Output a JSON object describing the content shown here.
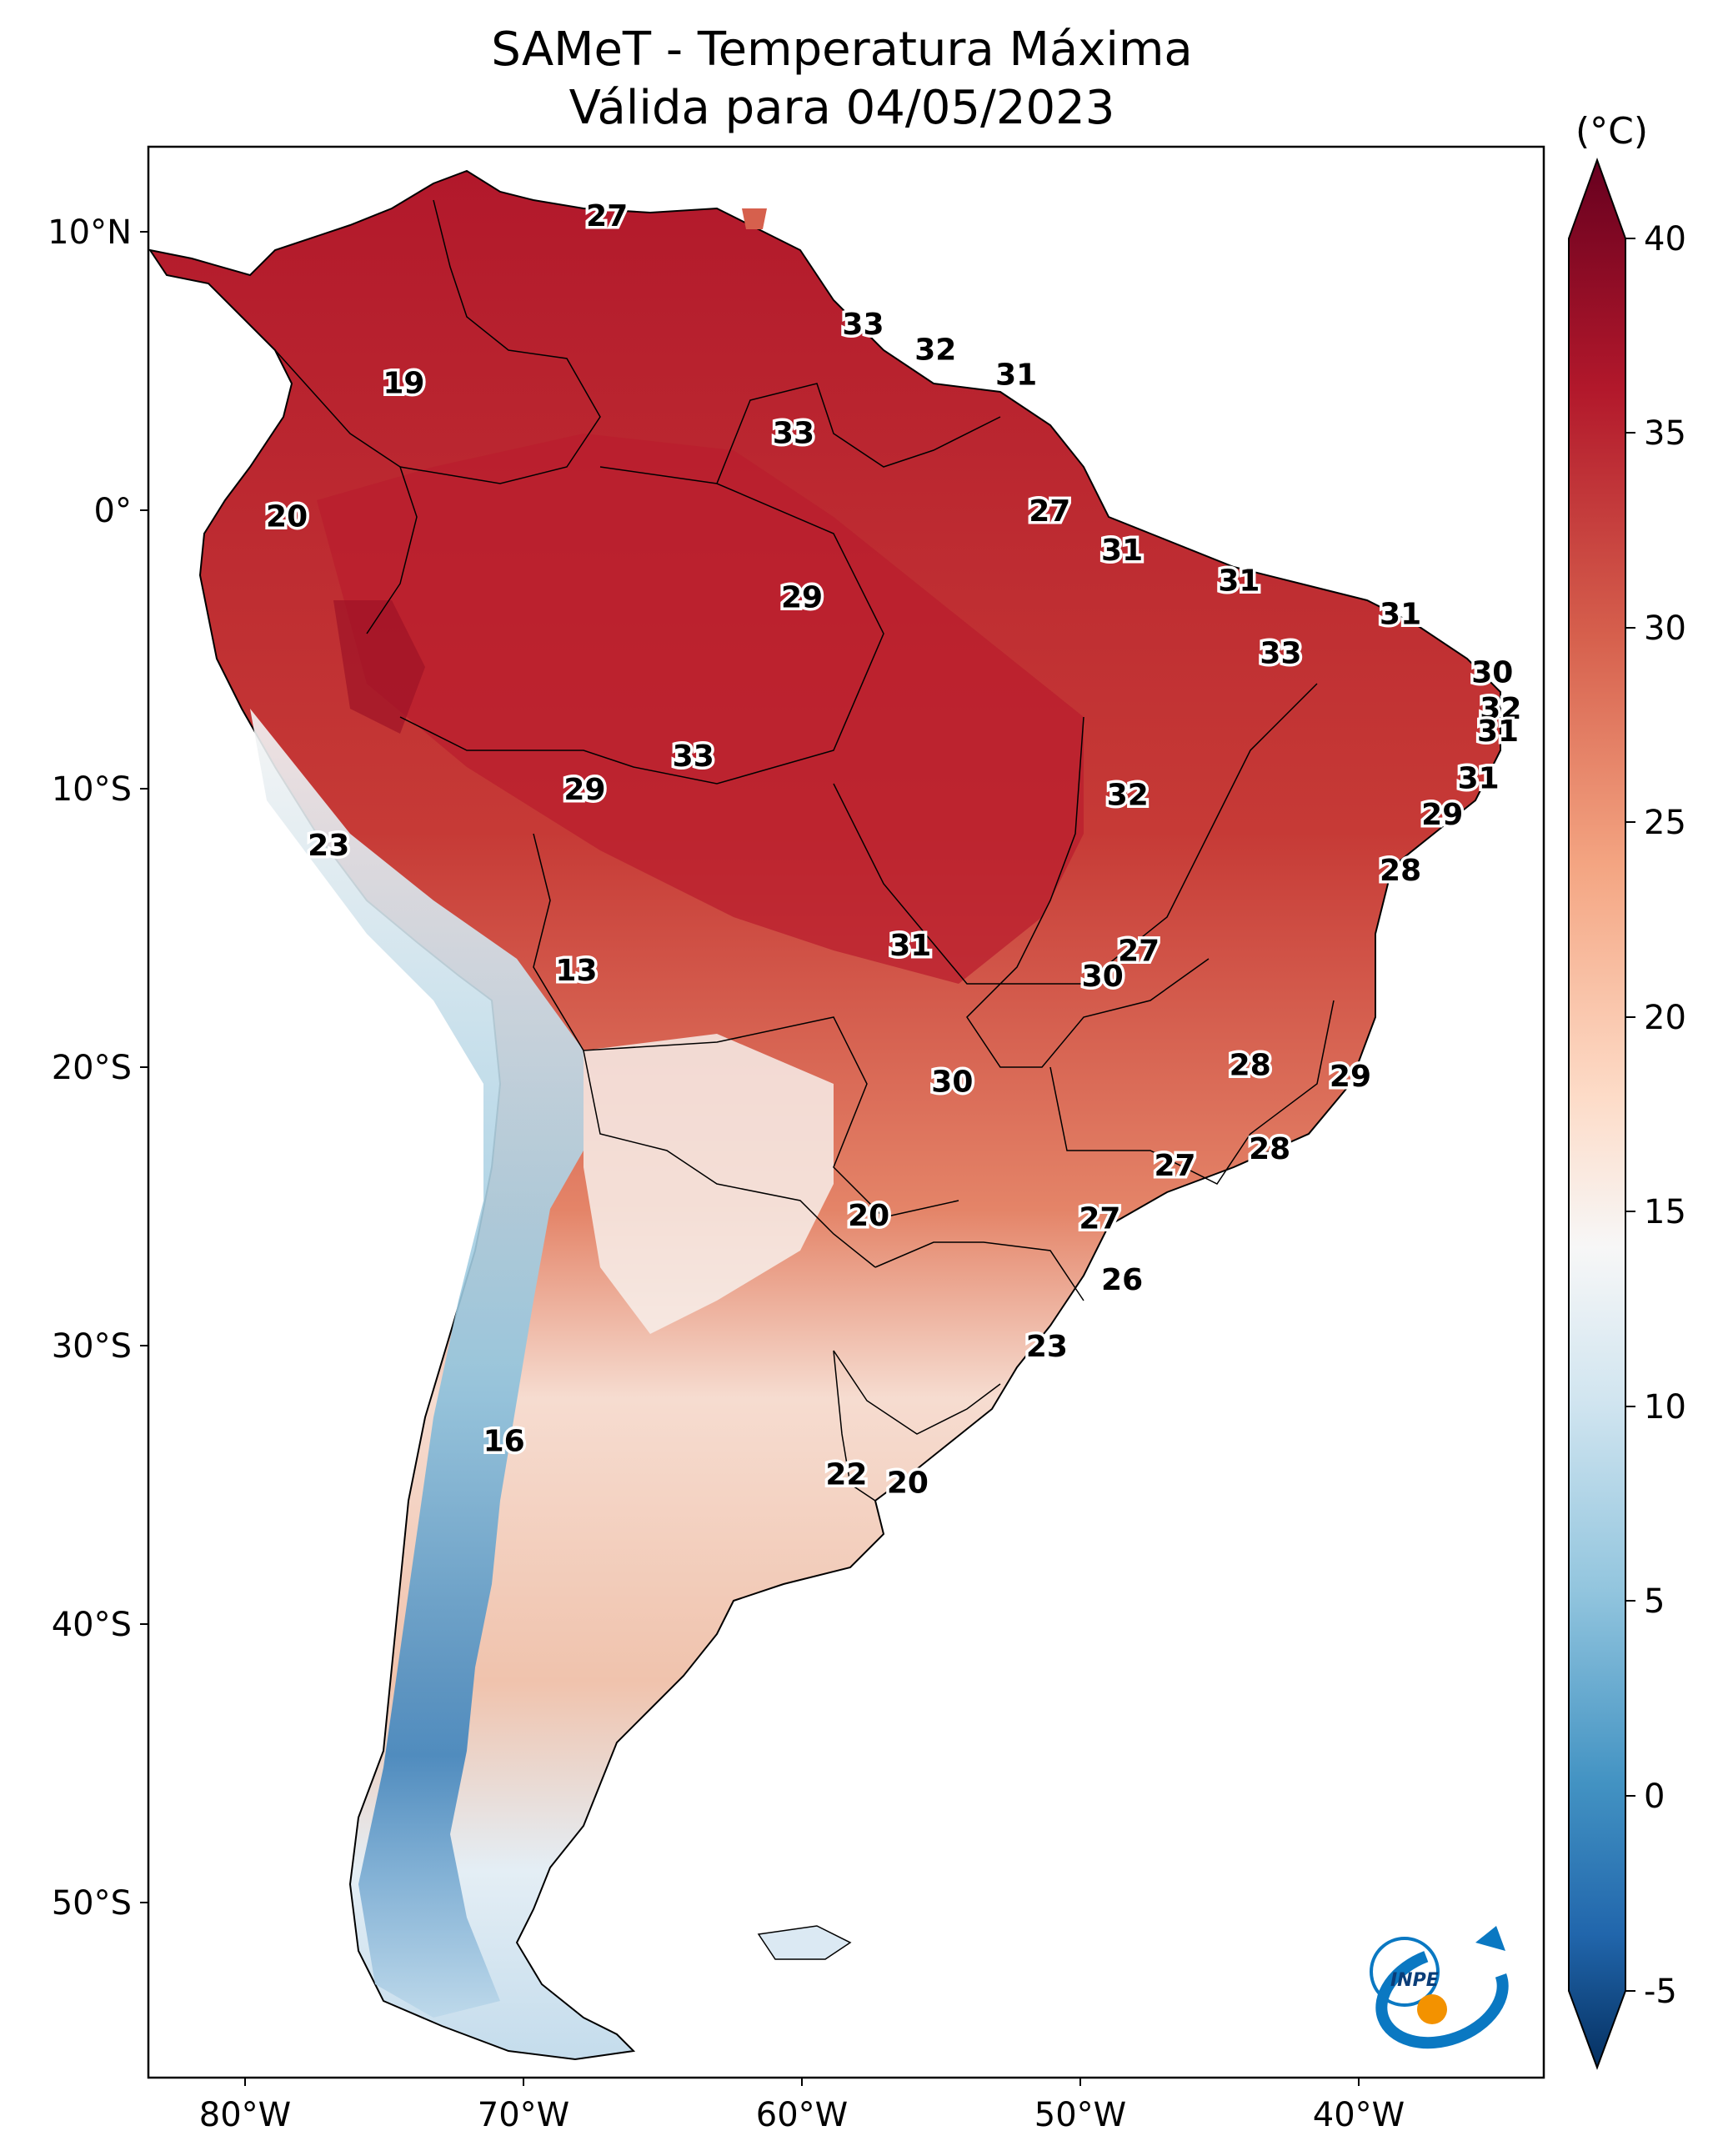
{
  "title": "SAMeT - Temperatura Máxima",
  "subtitle": "Válida para 04/05/2023",
  "colorbar": {
    "unit": "(°C)",
    "ticks": [
      "40",
      "35",
      "30",
      "25",
      "20",
      "15",
      "10",
      "5",
      "0",
      "-5"
    ],
    "stops": [
      "#67001f",
      "#b2182b",
      "#d6604d",
      "#f4a582",
      "#fddbc7",
      "#f7f7f7",
      "#d1e5f0",
      "#92c5de",
      "#4393c3",
      "#2166ac",
      "#053061"
    ]
  },
  "axes": {
    "lat_labels": [
      "10°N",
      "0°",
      "10°S",
      "20°S",
      "30°S",
      "40°S",
      "50°S"
    ],
    "lon_labels": [
      "80°W",
      "70°W",
      "60°W",
      "50°W",
      "40°W"
    ]
  },
  "station_values": [
    {
      "value": "27",
      "lon": -67.0,
      "lat": 10.6
    },
    {
      "value": "19",
      "lon": -74.3,
      "lat": 4.6
    },
    {
      "value": "33",
      "lon": -57.8,
      "lat": 6.7
    },
    {
      "value": "32",
      "lon": -55.2,
      "lat": 5.8
    },
    {
      "value": "31",
      "lon": -52.3,
      "lat": 4.9
    },
    {
      "value": "33",
      "lon": -60.3,
      "lat": 2.8
    },
    {
      "value": "20",
      "lon": -78.5,
      "lat": -0.2
    },
    {
      "value": "27",
      "lon": -51.1,
      "lat": 0.0
    },
    {
      "value": "31",
      "lon": -48.5,
      "lat": -1.4
    },
    {
      "value": "31",
      "lon": -44.3,
      "lat": -2.5
    },
    {
      "value": "29",
      "lon": -60.0,
      "lat": -3.1
    },
    {
      "value": "31",
      "lon": -38.5,
      "lat": -3.7
    },
    {
      "value": "33",
      "lon": -42.8,
      "lat": -5.1
    },
    {
      "value": "30",
      "lon": -35.2,
      "lat": -5.8
    },
    {
      "value": "32",
      "lon": -34.9,
      "lat": -7.1
    },
    {
      "value": "31",
      "lon": -35.0,
      "lat": -7.9
    },
    {
      "value": "33",
      "lon": -63.9,
      "lat": -8.8
    },
    {
      "value": "31",
      "lon": -35.7,
      "lat": -9.6
    },
    {
      "value": "29",
      "lon": -67.8,
      "lat": -10.0
    },
    {
      "value": "32",
      "lon": -48.3,
      "lat": -10.2
    },
    {
      "value": "29",
      "lon": -37.0,
      "lat": -10.9
    },
    {
      "value": "23",
      "lon": -77.0,
      "lat": -12.0
    },
    {
      "value": "28",
      "lon": -38.5,
      "lat": -12.9
    },
    {
      "value": "31",
      "lon": -56.1,
      "lat": -15.6
    },
    {
      "value": "27",
      "lon": -47.9,
      "lat": -15.8
    },
    {
      "value": "13",
      "lon": -68.1,
      "lat": -16.5
    },
    {
      "value": "30",
      "lon": -49.2,
      "lat": -16.7
    },
    {
      "value": "28",
      "lon": -43.9,
      "lat": -19.9
    },
    {
      "value": "29",
      "lon": -40.3,
      "lat": -20.3
    },
    {
      "value": "30",
      "lon": -54.6,
      "lat": -20.5
    },
    {
      "value": "28",
      "lon": -43.2,
      "lat": -22.9
    },
    {
      "value": "27",
      "lon": -46.6,
      "lat": -23.5
    },
    {
      "value": "20",
      "lon": -57.6,
      "lat": -25.3
    },
    {
      "value": "27",
      "lon": -49.3,
      "lat": -25.4
    },
    {
      "value": "26",
      "lon": -48.5,
      "lat": -27.6
    },
    {
      "value": "23",
      "lon": -51.2,
      "lat": -30.0
    },
    {
      "value": "16",
      "lon": -70.7,
      "lat": -33.4
    },
    {
      "value": "22",
      "lon": -58.4,
      "lat": -34.6
    },
    {
      "value": "20",
      "lon": -56.2,
      "lat": -34.9
    }
  ],
  "logo": {
    "text": "INPE"
  }
}
